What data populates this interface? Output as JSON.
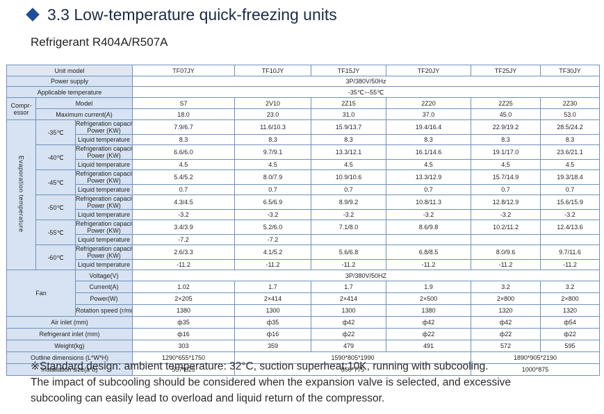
{
  "title": "3.3 Low-temperature quick-freezing units",
  "subtitle": "Refrigerant R404A/R507A",
  "labels": {
    "unit_model": "Unit model",
    "power_supply": "Power supply",
    "applicable_temperature": "Applicable temperature",
    "compressor": "Compr-essor",
    "model": "Model",
    "max_current": "Maximum current(A)",
    "evaporation_temperature": "Evaporation temperature",
    "capacity_power_a": "Refrigeration capacity/",
    "capacity_power_b": "Power (KW)",
    "liquid_temperature": "Liquid temperature",
    "fan": "Fan",
    "voltage": "Voltage(V)",
    "current": "Current(A)",
    "power": "Power(W)",
    "rotation_speed": "Rotation speed (r/min)",
    "air_inlet": "Air inlet (mm)",
    "refrigerant_inlet": "Refrigerant inlet (mm)",
    "weight": "Weight(kg)",
    "outline_dimensions": "Outline dimensions (L*W*H)",
    "installation_size": "Installation size(a*b)"
  },
  "models": [
    "TF07JY",
    "TF10JY",
    "TF15JY",
    "TF20JY",
    "TF25JY",
    "TF30JY"
  ],
  "power_supply": "3P/380V/50Hz",
  "applicable_temperature": "-35℃~-55℃",
  "compressor_models": [
    "S7",
    "2V10",
    "2Z15",
    "2Z20",
    "2Z25",
    "2Z30"
  ],
  "max_current": [
    "18.0",
    "23.0",
    "31.0",
    "37.0",
    "45.0",
    "53.0"
  ],
  "evaporation": [
    {
      "temp": "-35℃",
      "capacity": [
        "7.9/6.7",
        "11.6/10.3",
        "15.9/13.7",
        "19.4/16.4",
        "22.9/19.2",
        "28.5/24.2"
      ],
      "liquid": [
        "8.3",
        "8.3",
        "8.3",
        "8.3",
        "8.3",
        "8.3"
      ]
    },
    {
      "temp": "-40℃",
      "capacity": [
        "6.6/6.0",
        "9.7/9.1",
        "13.3/12.1",
        "16.1/14.6",
        "19.1/17.0",
        "23.6/21.1"
      ],
      "liquid": [
        "4.5",
        "4.5",
        "4.5",
        "4.5",
        "4.5",
        "4.5"
      ]
    },
    {
      "temp": "-45℃",
      "capacity": [
        "5.4/5.2",
        "8.0/7.9",
        "10.9/10.6",
        "13.3/12.9",
        "15.7/14.9",
        "19.3/18.4"
      ],
      "liquid": [
        "0.7",
        "0.7",
        "0.7",
        "0.7",
        "0.7",
        "0.7"
      ]
    },
    {
      "temp": "-50℃",
      "capacity": [
        "4.3/4.5",
        "6.5/6.9",
        "8.9/9.2",
        "10.8/11.3",
        "12.8/12.9",
        "15.6/15.9"
      ],
      "liquid": [
        "-3.2",
        "-3.2",
        "-3.2",
        "-3.2",
        "-3.2",
        "-3.2"
      ]
    },
    {
      "temp": "-55℃",
      "capacity": [
        "3.4/3.9",
        "5.2/6.0",
        "7.1/8.0",
        "8.6/9.8",
        "10.2/11.2",
        "12.4/13.6"
      ],
      "liquid": [
        "-7.2",
        "-7.2",
        "",
        "",
        "",
        ""
      ]
    },
    {
      "temp": "-60℃",
      "capacity": [
        "2.6/3.3",
        "4.1/5.2",
        "5.6/6.8",
        "6.8/8.5",
        "8.0/9.6",
        "9.7/11.6"
      ],
      "liquid": [
        "-11.2",
        "-11.2",
        "-11.2",
        "-11.2",
        "-11.2",
        "-11.2"
      ]
    }
  ],
  "fan_voltage": "3P/380V/50HZ",
  "fan_current": [
    "1.02",
    "1.7",
    "1.7",
    "1.9",
    "3.2",
    "3.2"
  ],
  "fan_power": [
    "2×205",
    "2×414",
    "2×414",
    "2×500",
    "2×800",
    "2×800"
  ],
  "rotation_speed": [
    "1380",
    "1300",
    "1300",
    "1380",
    "1320",
    "1320"
  ],
  "air_inlet": [
    "ф35",
    "ф35",
    "ф42",
    "ф42",
    "ф42",
    "ф54"
  ],
  "refrigerant_inlet": [
    "ф16",
    "ф16",
    "ф22",
    "ф22",
    "ф22",
    "ф22"
  ],
  "weight": [
    "303",
    "359",
    "479",
    "491",
    "572",
    "595"
  ],
  "outline_dimensions": [
    "1290*655*1750",
    "1590*805*1990",
    "1890*905*2190"
  ],
  "installation_size": [
    "557*625",
    "850*775",
    "1000*875"
  ],
  "note_lines": [
    "※Standard design: ambient temperature: 32°C, suction superheat:10K, running with subcooling.",
    "The impact of subcooling should be considered when the expansion valve is selected, and excessive",
    "subcooling can easily lead to overload and liquid return of the compressor."
  ]
}
